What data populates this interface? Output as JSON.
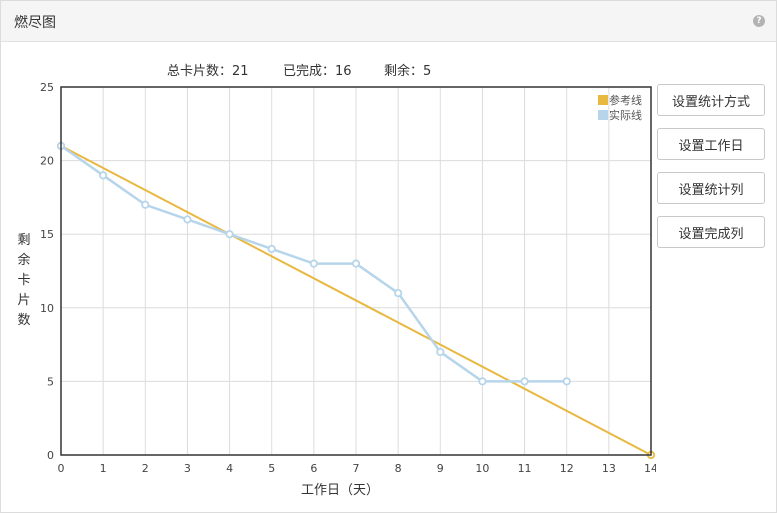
{
  "panel": {
    "title": "燃尽图",
    "help_icon": "question-circle-icon",
    "help_glyph": "?"
  },
  "stats": {
    "total_label": "总卡片数：",
    "total_value": "21",
    "done_label": "已完成：",
    "done_value": "16",
    "remaining_label": "剩余：",
    "remaining_value": "5"
  },
  "buttons": {
    "stat_mode": "设置统计方式",
    "workdays": "设置工作日",
    "stat_columns": "设置统计列",
    "done_columns": "设置完成列"
  },
  "colors": {
    "reference": "#e8b840",
    "actual": "#b7d5ea",
    "axis": "#333333",
    "grid": "#dcdcdc"
  },
  "chart_data": {
    "type": "line",
    "xlabel": "工作日（天）",
    "ylabel": "剩余卡片数",
    "xlim": [
      0,
      14
    ],
    "ylim": [
      0,
      25
    ],
    "x_ticks": [
      0,
      1,
      2,
      3,
      4,
      5,
      6,
      7,
      8,
      9,
      10,
      11,
      12,
      13,
      14
    ],
    "y_ticks": [
      0,
      5,
      10,
      15,
      20,
      25
    ],
    "grid": true,
    "legend_position": "top-right",
    "series": [
      {
        "name": "参考线",
        "x": [
          0,
          14
        ],
        "y": [
          21,
          0
        ]
      },
      {
        "name": "实际线",
        "x": [
          0,
          1,
          2,
          3,
          4,
          5,
          6,
          7,
          8,
          9,
          10,
          11,
          12
        ],
        "y": [
          21,
          19,
          17,
          16,
          15,
          14,
          13,
          13,
          11,
          7,
          5,
          5,
          5
        ]
      }
    ]
  }
}
